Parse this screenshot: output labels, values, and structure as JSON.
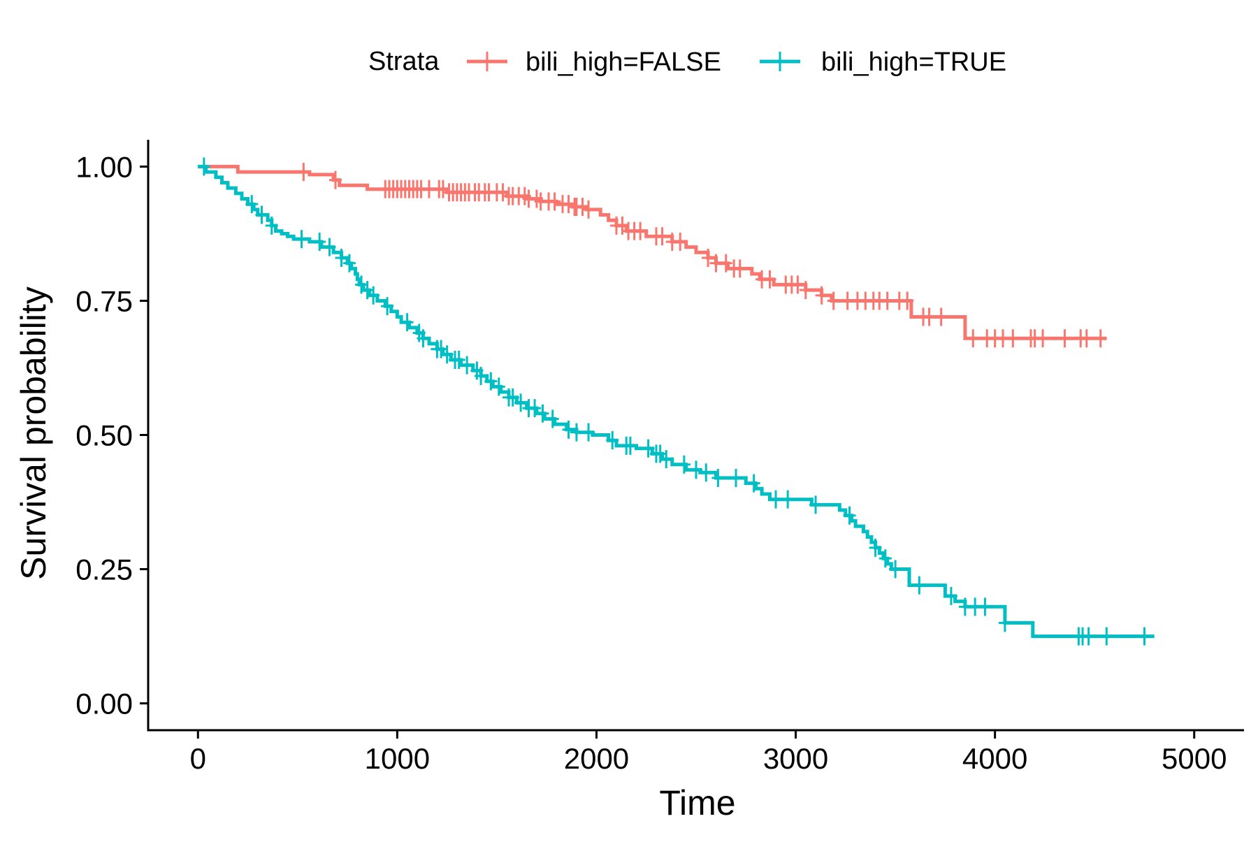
{
  "legend": {
    "title": "Strata",
    "position": "top"
  },
  "chart_data": {
    "type": "line",
    "subtype": "kaplan-meier step",
    "xlabel": "Time",
    "ylabel": "Survival probability",
    "xlim": [
      -250,
      5250
    ],
    "ylim": [
      -0.05,
      1.05
    ],
    "x_ticks": [
      0,
      1000,
      2000,
      3000,
      4000,
      5000
    ],
    "x_tick_labels": [
      "0",
      "1000",
      "2000",
      "3000",
      "4000",
      "5000"
    ],
    "y_ticks": [
      0,
      0.25,
      0.5,
      0.75,
      1.0
    ],
    "y_tick_labels": [
      "0.00",
      "0.25",
      "0.50",
      "0.75",
      "1.00"
    ],
    "grid": false,
    "series": [
      {
        "name": "bili_high=FALSE",
        "color": "#F8766D",
        "steps": [
          [
            0,
            1.0
          ],
          [
            200,
            0.99
          ],
          [
            560,
            0.985
          ],
          [
            680,
            0.975
          ],
          [
            710,
            0.965
          ],
          [
            850,
            0.958
          ],
          [
            1250,
            0.952
          ],
          [
            1550,
            0.945
          ],
          [
            1650,
            0.94
          ],
          [
            1720,
            0.935
          ],
          [
            1800,
            0.93
          ],
          [
            1880,
            0.925
          ],
          [
            1950,
            0.92
          ],
          [
            2020,
            0.91
          ],
          [
            2060,
            0.9
          ],
          [
            2100,
            0.89
          ],
          [
            2150,
            0.88
          ],
          [
            2250,
            0.87
          ],
          [
            2380,
            0.86
          ],
          [
            2450,
            0.85
          ],
          [
            2500,
            0.84
          ],
          [
            2560,
            0.83
          ],
          [
            2600,
            0.82
          ],
          [
            2660,
            0.81
          ],
          [
            2780,
            0.8
          ],
          [
            2820,
            0.79
          ],
          [
            2890,
            0.78
          ],
          [
            3050,
            0.77
          ],
          [
            3130,
            0.76
          ],
          [
            3180,
            0.75
          ],
          [
            3580,
            0.72
          ],
          [
            3850,
            0.68
          ],
          [
            4560,
            0.68
          ]
        ],
        "censor_times": [
          530,
          690,
          940,
          960,
          980,
          1000,
          1020,
          1040,
          1060,
          1080,
          1100,
          1120,
          1160,
          1210,
          1230,
          1260,
          1280,
          1300,
          1320,
          1340,
          1360,
          1390,
          1410,
          1440,
          1460,
          1500,
          1530,
          1560,
          1580,
          1610,
          1640,
          1660,
          1700,
          1720,
          1760,
          1790,
          1830,
          1860,
          1890,
          1900,
          1930,
          1960,
          2100,
          2130,
          2160,
          2190,
          2220,
          2300,
          2330,
          2380,
          2420,
          2560,
          2600,
          2650,
          2690,
          2720,
          2830,
          2870,
          2950,
          2980,
          3010,
          3050,
          3130,
          3190,
          3260,
          3310,
          3350,
          3390,
          3420,
          3460,
          3520,
          3560,
          3640,
          3670,
          3730,
          3890,
          3960,
          4000,
          4040,
          4090,
          4180,
          4200,
          4240,
          4350,
          4430,
          4460,
          4530
        ]
      },
      {
        "name": "bili_high=TRUE",
        "color": "#00BFC4",
        "steps": [
          [
            0,
            1.0
          ],
          [
            40,
            0.99
          ],
          [
            90,
            0.98
          ],
          [
            120,
            0.97
          ],
          [
            150,
            0.96
          ],
          [
            190,
            0.95
          ],
          [
            220,
            0.94
          ],
          [
            250,
            0.93
          ],
          [
            280,
            0.92
          ],
          [
            300,
            0.91
          ],
          [
            350,
            0.9
          ],
          [
            370,
            0.89
          ],
          [
            390,
            0.88
          ],
          [
            420,
            0.875
          ],
          [
            450,
            0.87
          ],
          [
            480,
            0.865
          ],
          [
            560,
            0.86
          ],
          [
            620,
            0.85
          ],
          [
            680,
            0.84
          ],
          [
            720,
            0.83
          ],
          [
            750,
            0.82
          ],
          [
            770,
            0.81
          ],
          [
            790,
            0.8
          ],
          [
            800,
            0.79
          ],
          [
            810,
            0.78
          ],
          [
            830,
            0.77
          ],
          [
            860,
            0.76
          ],
          [
            900,
            0.75
          ],
          [
            940,
            0.74
          ],
          [
            970,
            0.73
          ],
          [
            1000,
            0.72
          ],
          [
            1020,
            0.71
          ],
          [
            1060,
            0.7
          ],
          [
            1100,
            0.69
          ],
          [
            1130,
            0.68
          ],
          [
            1160,
            0.67
          ],
          [
            1200,
            0.66
          ],
          [
            1230,
            0.65
          ],
          [
            1270,
            0.64
          ],
          [
            1320,
            0.63
          ],
          [
            1380,
            0.62
          ],
          [
            1420,
            0.61
          ],
          [
            1450,
            0.6
          ],
          [
            1480,
            0.59
          ],
          [
            1520,
            0.58
          ],
          [
            1560,
            0.57
          ],
          [
            1600,
            0.56
          ],
          [
            1650,
            0.55
          ],
          [
            1700,
            0.54
          ],
          [
            1740,
            0.53
          ],
          [
            1790,
            0.52
          ],
          [
            1850,
            0.51
          ],
          [
            1900,
            0.505
          ],
          [
            1980,
            0.5
          ],
          [
            2060,
            0.49
          ],
          [
            2100,
            0.48
          ],
          [
            2200,
            0.475
          ],
          [
            2280,
            0.465
          ],
          [
            2330,
            0.455
          ],
          [
            2380,
            0.445
          ],
          [
            2450,
            0.435
          ],
          [
            2520,
            0.43
          ],
          [
            2600,
            0.42
          ],
          [
            2750,
            0.41
          ],
          [
            2800,
            0.4
          ],
          [
            2830,
            0.39
          ],
          [
            2870,
            0.38
          ],
          [
            3080,
            0.37
          ],
          [
            3220,
            0.36
          ],
          [
            3250,
            0.35
          ],
          [
            3280,
            0.34
          ],
          [
            3300,
            0.33
          ],
          [
            3340,
            0.32
          ],
          [
            3360,
            0.31
          ],
          [
            3380,
            0.3
          ],
          [
            3400,
            0.29
          ],
          [
            3420,
            0.28
          ],
          [
            3440,
            0.27
          ],
          [
            3460,
            0.26
          ],
          [
            3480,
            0.25
          ],
          [
            3570,
            0.22
          ],
          [
            3750,
            0.2
          ],
          [
            3800,
            0.19
          ],
          [
            3850,
            0.18
          ],
          [
            4050,
            0.15
          ],
          [
            4190,
            0.125
          ],
          [
            4800,
            0.125
          ]
        ],
        "censor_times": [
          30,
          270,
          320,
          370,
          520,
          610,
          660,
          720,
          760,
          820,
          850,
          880,
          950,
          1050,
          1110,
          1130,
          1200,
          1220,
          1250,
          1290,
          1310,
          1350,
          1400,
          1420,
          1470,
          1510,
          1560,
          1580,
          1620,
          1660,
          1690,
          1730,
          1780,
          1860,
          1900,
          1960,
          2080,
          2150,
          2170,
          2260,
          2300,
          2320,
          2350,
          2440,
          2500,
          2550,
          2610,
          2700,
          2790,
          2900,
          2960,
          3100,
          3270,
          3400,
          3450,
          3500,
          3620,
          3780,
          3850,
          3900,
          3950,
          4050,
          4420,
          4440,
          4470,
          4560,
          4750
        ]
      }
    ]
  }
}
